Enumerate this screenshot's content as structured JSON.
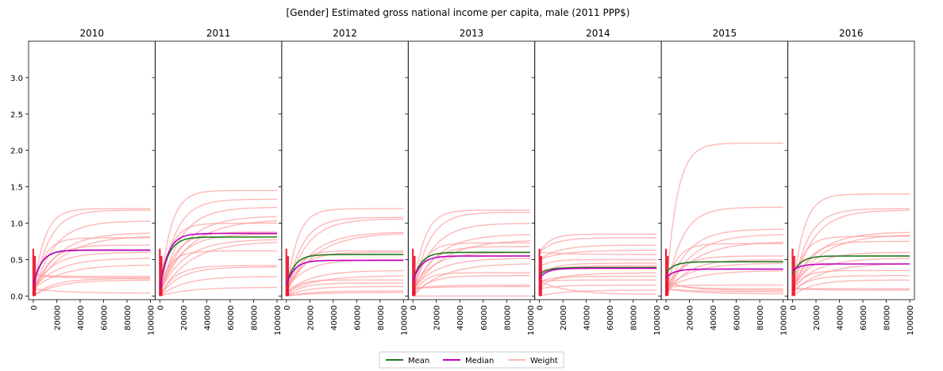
{
  "figure": {
    "title": "[Gender] Estimated gross national income per capita, male (2011 PPP$)"
  },
  "colors": {
    "mean": "#1f7a1f",
    "median": "#c000c0",
    "weight": "#ff9a9a",
    "axis": "#000000"
  },
  "legend": {
    "position": "bottom-center",
    "items": [
      {
        "label": "Mean",
        "color": "#1f7a1f"
      },
      {
        "label": "Median",
        "color": "#c000c0"
      },
      {
        "label": "Weight",
        "color": "#ffb3b3"
      }
    ]
  },
  "chart_data": {
    "type": "line",
    "shared_axes": {
      "x_ticks": [
        0,
        20000,
        40000,
        60000,
        80000,
        100000
      ],
      "x_tick_labels": [
        "0",
        "20000",
        "40000",
        "60000",
        "80000",
        "100000"
      ],
      "xlim": [
        -4000,
        104000
      ],
      "y_ticks": [
        0.0,
        0.5,
        1.0,
        1.5,
        2.0,
        2.5,
        3.0
      ],
      "y_tick_labels": [
        "0.0",
        "0.5",
        "1.0",
        "1.5",
        "2.0",
        "2.5",
        "3.0"
      ],
      "ylim": [
        -0.05,
        3.5
      ],
      "xlabel": "",
      "ylabel": ""
    },
    "panels": [
      {
        "title": "2010",
        "mean": {
          "start": 0.15,
          "end": 0.63
        },
        "median": {
          "start": 0.15,
          "end": 0.63
        },
        "weights": [
          [
            0.0,
            1.2
          ],
          [
            0.0,
            1.18
          ],
          [
            0.0,
            1.03
          ],
          [
            0.05,
            0.87
          ],
          [
            0.05,
            0.83
          ],
          [
            0.05,
            0.8
          ],
          [
            0.0,
            0.7
          ],
          [
            0.1,
            0.6
          ],
          [
            0.1,
            0.52
          ],
          [
            0.1,
            0.43
          ],
          [
            0.3,
            0.27
          ],
          [
            0.3,
            0.25
          ],
          [
            0.0,
            0.24
          ],
          [
            0.0,
            0.22
          ],
          [
            0.1,
            0.04
          ]
        ]
      },
      {
        "title": "2011",
        "mean": {
          "start": 0.1,
          "end": 0.81
        },
        "median": {
          "start": 0.1,
          "end": 0.86
        },
        "weights": [
          [
            0.0,
            1.45
          ],
          [
            0.0,
            1.33
          ],
          [
            0.0,
            1.22
          ],
          [
            0.05,
            1.1
          ],
          [
            0.05,
            1.05
          ],
          [
            0.05,
            1.0
          ],
          [
            0.05,
            0.88
          ],
          [
            0.05,
            0.85
          ],
          [
            0.05,
            0.78
          ],
          [
            0.0,
            0.75
          ],
          [
            0.1,
            0.62
          ],
          [
            0.0,
            0.42
          ],
          [
            0.0,
            0.4
          ],
          [
            0.0,
            0.27
          ],
          [
            0.0,
            0.12
          ]
        ]
      },
      {
        "title": "2012",
        "mean": {
          "start": 0.15,
          "end": 0.57
        },
        "median": {
          "start": 0.15,
          "end": 0.49
        },
        "weights": [
          [
            0.0,
            1.2
          ],
          [
            0.0,
            1.08
          ],
          [
            0.05,
            1.06
          ],
          [
            0.05,
            0.88
          ],
          [
            0.05,
            0.87
          ],
          [
            0.0,
            0.62
          ],
          [
            0.05,
            0.6
          ],
          [
            0.1,
            0.5
          ],
          [
            0.05,
            0.35
          ],
          [
            0.05,
            0.28
          ],
          [
            0.0,
            0.22
          ],
          [
            0.0,
            0.18
          ],
          [
            0.0,
            0.13
          ],
          [
            0.0,
            0.07
          ],
          [
            0.0,
            0.05
          ]
        ]
      },
      {
        "title": "2013",
        "mean": {
          "start": 0.2,
          "end": 0.6
        },
        "median": {
          "start": 0.2,
          "end": 0.55
        },
        "weights": [
          [
            0.0,
            1.18
          ],
          [
            0.0,
            1.15
          ],
          [
            0.05,
            1.0
          ],
          [
            0.05,
            0.85
          ],
          [
            0.05,
            0.77
          ],
          [
            0.0,
            0.73
          ],
          [
            0.0,
            0.68
          ],
          [
            0.1,
            0.6
          ],
          [
            0.1,
            0.52
          ],
          [
            0.0,
            0.45
          ],
          [
            0.0,
            0.32
          ],
          [
            0.0,
            0.28
          ],
          [
            0.1,
            0.15
          ],
          [
            0.1,
            0.13
          ],
          [
            0.0,
            0.0
          ]
        ]
      },
      {
        "title": "2014",
        "mean": {
          "start": 0.3,
          "end": 0.39
        },
        "median": {
          "start": 0.25,
          "end": 0.38
        },
        "weights": [
          [
            0.6,
            0.85
          ],
          [
            0.6,
            0.8
          ],
          [
            0.5,
            0.7
          ],
          [
            0.5,
            0.63
          ],
          [
            0.6,
            0.57
          ],
          [
            0.4,
            0.5
          ],
          [
            0.3,
            0.45
          ],
          [
            0.3,
            0.42
          ],
          [
            0.35,
            0.4
          ],
          [
            0.2,
            0.32
          ],
          [
            0.1,
            0.27
          ],
          [
            0.2,
            0.22
          ],
          [
            0.1,
            0.15
          ],
          [
            0.0,
            0.08
          ],
          [
            0.2,
            0.02
          ]
        ]
      },
      {
        "title": "2015",
        "mean": {
          "start": 0.32,
          "end": 0.47
        },
        "median": {
          "start": 0.25,
          "end": 0.37
        },
        "weights": [
          [
            0.0,
            2.1
          ],
          [
            0.0,
            1.22
          ],
          [
            0.0,
            0.92
          ],
          [
            0.0,
            0.85
          ],
          [
            0.1,
            0.75
          ],
          [
            0.1,
            0.72
          ],
          [
            0.1,
            0.55
          ],
          [
            0.0,
            0.5
          ],
          [
            0.1,
            0.45
          ],
          [
            0.1,
            0.35
          ],
          [
            0.1,
            0.15
          ],
          [
            0.2,
            0.1
          ],
          [
            0.2,
            0.08
          ],
          [
            0.1,
            0.06
          ],
          [
            0.1,
            0.03
          ]
        ]
      },
      {
        "title": "2016",
        "mean": {
          "start": 0.3,
          "end": 0.55
        },
        "median": {
          "start": 0.35,
          "end": 0.44
        },
        "weights": [
          [
            0.0,
            1.4
          ],
          [
            0.05,
            1.2
          ],
          [
            0.05,
            1.18
          ],
          [
            0.1,
            0.88
          ],
          [
            0.1,
            0.85
          ],
          [
            0.1,
            0.82
          ],
          [
            0.05,
            0.75
          ],
          [
            0.1,
            0.6
          ],
          [
            0.1,
            0.52
          ],
          [
            0.05,
            0.45
          ],
          [
            0.05,
            0.35
          ],
          [
            0.05,
            0.28
          ],
          [
            0.0,
            0.22
          ],
          [
            0.1,
            0.1
          ],
          [
            0.1,
            0.08
          ]
        ]
      }
    ]
  }
}
